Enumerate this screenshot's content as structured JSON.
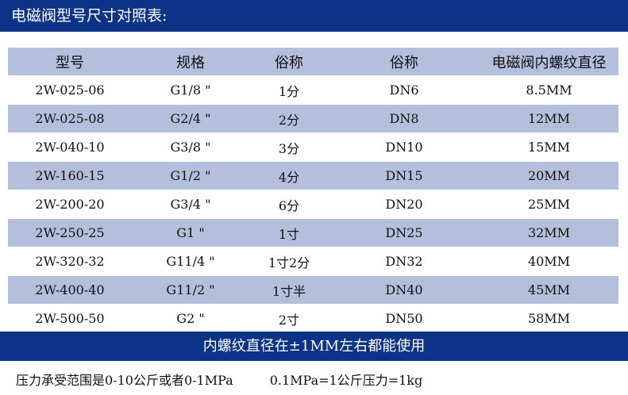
{
  "title": "电磁阀型号尺寸对照表:",
  "table": {
    "headers": [
      "型号",
      "规格",
      "俗称",
      "俗称",
      "电磁阀内螺纹直径"
    ],
    "rows": [
      [
        "2W-025-06",
        "G1/8 \"",
        "1分",
        "DN6",
        "8.5MM"
      ],
      [
        "2W-025-08",
        "G2/4 \"",
        "2分",
        "DN8",
        "12MM"
      ],
      [
        "2W-040-10",
        "G3/8 \"",
        "3分",
        "DN10",
        "15MM"
      ],
      [
        "2W-160-15",
        "G1/2 \"",
        "4分",
        "DN15",
        "20MM"
      ],
      [
        "2W-200-20",
        "G3/4 \"",
        "6分",
        "DN20",
        "25MM"
      ],
      [
        "2W-250-25",
        "G1 \"",
        "1寸",
        "DN25",
        "32MM"
      ],
      [
        "2W-320-32",
        "G11/4 \"",
        "1寸2分",
        "DN32",
        "40MM"
      ],
      [
        "2W-400-40",
        "G11/2 \"",
        "1寸半",
        "DN40",
        "45MM"
      ],
      [
        "2W-500-50",
        "G2 \"",
        "2寸",
        "DN50",
        "58MM"
      ]
    ]
  },
  "banner": "内螺纹直径在±1MM左右都能使用",
  "footer": {
    "left": "压力承受范围是0-10公斤或者0-1MPa",
    "right": "0.1MPa=1公斤压力=1kg"
  },
  "colors": {
    "dark_blue": "#0c3385",
    "light_blue": "#b3bfdb"
  }
}
